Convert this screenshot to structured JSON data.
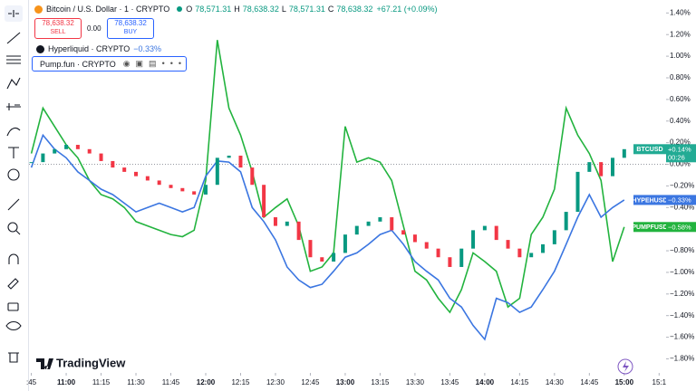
{
  "header": {
    "symbol": "Bitcoin / U.S. Dollar · 1 · CRYPTO",
    "ohlc": [
      {
        "key": "O",
        "value": "78,571.31"
      },
      {
        "key": "H",
        "value": "78,638.32"
      },
      {
        "key": "L",
        "value": "78,571.31"
      },
      {
        "key": "C",
        "value": "78,638.32"
      }
    ],
    "change": "+67.21 (+0.09%)",
    "sell_price": "78,638.32",
    "sell_label": "SELL",
    "spread": "0.00",
    "buy_price": "78,638.32",
    "buy_label": "BUY"
  },
  "legend": [
    {
      "name": "Hyperliquid · CRYPTO",
      "change": "−0.33%"
    },
    {
      "name": "Pump.fun · CRYPTO"
    }
  ],
  "logo": "TradingView",
  "chart_data": {
    "type": "line",
    "x": [
      645,
      650,
      655,
      660,
      665,
      670,
      675,
      680,
      685,
      690,
      695,
      700,
      705,
      710,
      715,
      720,
      725,
      730,
      735,
      740,
      745,
      750,
      755,
      760,
      765,
      770,
      775,
      780,
      785,
      790,
      795,
      800,
      805,
      810,
      815,
      820,
      825,
      830,
      835,
      840,
      845,
      850,
      855,
      860,
      865,
      870,
      875,
      880,
      885,
      890,
      895,
      900
    ],
    "series": [
      {
        "name": "BTCUSD",
        "style": "candles",
        "up_color": "#089981",
        "down_color": "#f23645",
        "color": "#22ab94",
        "last_label": "+0.14%",
        "countdown": "00:26",
        "values": [
          0.02,
          0.1,
          0.14,
          0.18,
          0.14,
          0.1,
          0.03,
          -0.03,
          -0.07,
          -0.11,
          -0.15,
          -0.19,
          -0.22,
          -0.25,
          -0.28,
          -0.19,
          0.06,
          0.08,
          -0.03,
          -0.19,
          -0.49,
          -0.57,
          -0.53,
          -0.7,
          -0.86,
          -0.9,
          -0.82,
          -0.65,
          -0.57,
          -0.53,
          -0.49,
          -0.61,
          -0.65,
          -0.72,
          -0.78,
          -0.86,
          -0.95,
          -0.78,
          -0.61,
          -0.57,
          -0.7,
          -0.78,
          -0.86,
          -0.82,
          -0.74,
          -0.61,
          -0.44,
          -0.07,
          0.02,
          -0.11,
          0.06,
          0.14
        ]
      },
      {
        "name": "HYPEHUSD",
        "style": "line",
        "color": "#3b76e1",
        "last_label": "−0.33%",
        "values": [
          -0.03,
          0.27,
          0.14,
          0.06,
          -0.07,
          -0.15,
          -0.23,
          -0.28,
          -0.36,
          -0.44,
          -0.4,
          -0.36,
          -0.4,
          -0.44,
          -0.4,
          -0.11,
          0.03,
          0.02,
          -0.07,
          -0.4,
          -0.53,
          -0.7,
          -0.95,
          -1.07,
          -1.14,
          -1.11,
          -0.99,
          -0.86,
          -0.82,
          -0.74,
          -0.65,
          -0.61,
          -0.74,
          -0.9,
          -0.99,
          -1.07,
          -1.24,
          -1.32,
          -1.49,
          -1.62,
          -1.24,
          -1.28,
          -1.37,
          -1.32,
          -1.16,
          -0.99,
          -0.74,
          -0.49,
          -0.28,
          -0.49,
          -0.4,
          -0.33
        ]
      },
      {
        "name": "PUMPFUSD",
        "style": "line",
        "color": "#22b33e",
        "last_label": "−0.58%",
        "values": [
          0.1,
          0.52,
          0.35,
          0.18,
          0.06,
          -0.15,
          -0.28,
          -0.32,
          -0.4,
          -0.53,
          -0.57,
          -0.61,
          -0.65,
          -0.67,
          -0.61,
          -0.15,
          1.15,
          0.52,
          0.27,
          -0.07,
          -0.49,
          -0.4,
          -0.32,
          -0.57,
          -0.99,
          -0.95,
          -0.82,
          0.35,
          0.02,
          0.06,
          0.02,
          -0.15,
          -0.57,
          -0.99,
          -1.07,
          -1.24,
          -1.37,
          -1.16,
          -0.82,
          -0.9,
          -0.99,
          -1.32,
          -1.24,
          -0.65,
          -0.49,
          -0.23,
          0.52,
          0.27,
          0.1,
          -0.15,
          -0.9,
          -0.58
        ]
      }
    ],
    "xlim": [
      644,
      918
    ],
    "xticks": [
      {
        "value": 645,
        "label": ":45"
      },
      {
        "value": 660,
        "label": "11:00"
      },
      {
        "value": 675,
        "label": "11:15"
      },
      {
        "value": 690,
        "label": "11:30"
      },
      {
        "value": 705,
        "label": "11:45"
      },
      {
        "value": 720,
        "label": "12:00"
      },
      {
        "value": 735,
        "label": "12:15"
      },
      {
        "value": 750,
        "label": "12:30"
      },
      {
        "value": 765,
        "label": "12:45"
      },
      {
        "value": 780,
        "label": "13:00"
      },
      {
        "value": 795,
        "label": "13:15"
      },
      {
        "value": 810,
        "label": "13:30"
      },
      {
        "value": 825,
        "label": "13:45"
      },
      {
        "value": 840,
        "label": "14:00"
      },
      {
        "value": 855,
        "label": "14:15"
      },
      {
        "value": 870,
        "label": "14:30"
      },
      {
        "value": 885,
        "label": "14:45"
      },
      {
        "value": 900,
        "label": "15:00"
      },
      {
        "value": 915,
        "label": "15:1"
      }
    ],
    "ylim": [
      -1.93,
      1.52
    ],
    "yticks": [
      {
        "value": 1.4,
        "label": "1.40%"
      },
      {
        "value": 1.2,
        "label": "1.20%"
      },
      {
        "value": 1.0,
        "label": "1.00%"
      },
      {
        "value": 0.8,
        "label": "0.80%"
      },
      {
        "value": 0.6,
        "label": "0.60%"
      },
      {
        "value": 0.4,
        "label": "0.40%"
      },
      {
        "value": 0.2,
        "label": "0.20%"
      },
      {
        "value": 0,
        "label": "0.00%"
      },
      {
        "value": -0.2,
        "label": "−0.20%"
      },
      {
        "value": -0.4,
        "label": "−0.40%"
      },
      {
        "value": -0.6,
        "label": "−0.60%"
      },
      {
        "value": -0.8,
        "label": "−0.80%"
      },
      {
        "value": -1.0,
        "label": "−1.00%"
      },
      {
        "value": -1.2,
        "label": "−1.20%"
      },
      {
        "value": -1.4,
        "label": "−1.40%"
      },
      {
        "value": -1.6,
        "label": "−1.60%"
      },
      {
        "value": -1.8,
        "label": "−1.80%"
      }
    ],
    "baseline": 0
  }
}
